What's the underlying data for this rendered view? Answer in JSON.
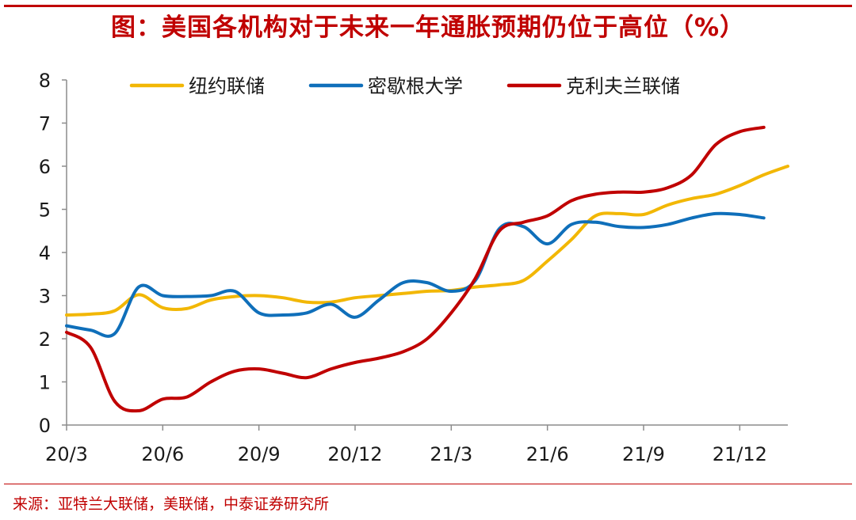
{
  "header": {
    "title": "图：美国各机构对于未来一年通胀预期仍位于高位（%）"
  },
  "footer": {
    "source": "来源：亚特兰大联储，美联储，中泰证券研究所"
  },
  "chart_data": {
    "type": "line",
    "title": "图：美国各机构对于未来一年通胀预期仍位于高位（%）",
    "xlabel": "",
    "ylabel": "",
    "ylim": [
      0,
      8
    ],
    "yticks": [
      "0",
      "1",
      "2",
      "3",
      "4",
      "5",
      "6",
      "7",
      "8"
    ],
    "xticks": [
      "20/3",
      "20/6",
      "20/9",
      "20/12",
      "21/3",
      "21/6",
      "21/9",
      "21/12"
    ],
    "grid": false,
    "legend_position": "top",
    "series": [
      {
        "name": "纽约联储",
        "color": "#f2b705",
        "points": [
          [
            0,
            2.55
          ],
          [
            0.5,
            2.57
          ],
          [
            1,
            2.65
          ],
          [
            1.5,
            3.02
          ],
          [
            2,
            2.72
          ],
          [
            2.5,
            2.7
          ],
          [
            3,
            2.9
          ],
          [
            3.5,
            2.98
          ],
          [
            4,
            3.0
          ],
          [
            4.5,
            2.95
          ],
          [
            5,
            2.85
          ],
          [
            5.5,
            2.85
          ],
          [
            6,
            2.95
          ],
          [
            6.5,
            3.0
          ],
          [
            7,
            3.05
          ],
          [
            7.5,
            3.1
          ],
          [
            8,
            3.12
          ],
          [
            8.5,
            3.2
          ],
          [
            9,
            3.25
          ],
          [
            9.5,
            3.35
          ],
          [
            10,
            3.8
          ],
          [
            10.5,
            4.3
          ],
          [
            11,
            4.85
          ],
          [
            11.5,
            4.9
          ],
          [
            12,
            4.88
          ],
          [
            12.5,
            5.1
          ],
          [
            13,
            5.25
          ],
          [
            13.5,
            5.35
          ],
          [
            14,
            5.55
          ],
          [
            14.5,
            5.8
          ],
          [
            15,
            6.0
          ]
        ]
      },
      {
        "name": "密歇根大学",
        "color": "#0f6fba",
        "points": [
          [
            0,
            2.3
          ],
          [
            0.5,
            2.2
          ],
          [
            1,
            2.12
          ],
          [
            1.5,
            3.2
          ],
          [
            2,
            3.0
          ],
          [
            2.5,
            2.98
          ],
          [
            3,
            3.0
          ],
          [
            3.5,
            3.1
          ],
          [
            4,
            2.6
          ],
          [
            4.5,
            2.55
          ],
          [
            5,
            2.6
          ],
          [
            5.5,
            2.8
          ],
          [
            6,
            2.5
          ],
          [
            6.5,
            2.9
          ],
          [
            7,
            3.3
          ],
          [
            7.5,
            3.3
          ],
          [
            8,
            3.1
          ],
          [
            8.5,
            3.35
          ],
          [
            9,
            4.55
          ],
          [
            9.5,
            4.6
          ],
          [
            10,
            4.2
          ],
          [
            10.5,
            4.65
          ],
          [
            11,
            4.7
          ],
          [
            11.5,
            4.6
          ],
          [
            12,
            4.58
          ],
          [
            12.5,
            4.65
          ],
          [
            13,
            4.8
          ],
          [
            13.5,
            4.9
          ],
          [
            14,
            4.88
          ],
          [
            14.5,
            4.8
          ]
        ]
      },
      {
        "name": "克利夫兰联储",
        "color": "#c00000",
        "points": [
          [
            0,
            2.15
          ],
          [
            0.5,
            1.8
          ],
          [
            1,
            0.55
          ],
          [
            1.5,
            0.33
          ],
          [
            2,
            0.6
          ],
          [
            2.5,
            0.65
          ],
          [
            3,
            1.0
          ],
          [
            3.5,
            1.25
          ],
          [
            4,
            1.3
          ],
          [
            4.5,
            1.2
          ],
          [
            5,
            1.1
          ],
          [
            5.5,
            1.3
          ],
          [
            6,
            1.45
          ],
          [
            6.5,
            1.55
          ],
          [
            7,
            1.7
          ],
          [
            7.5,
            2.0
          ],
          [
            8,
            2.6
          ],
          [
            8.5,
            3.4
          ],
          [
            9,
            4.5
          ],
          [
            9.5,
            4.7
          ],
          [
            10,
            4.85
          ],
          [
            10.5,
            5.2
          ],
          [
            11,
            5.35
          ],
          [
            11.5,
            5.4
          ],
          [
            12,
            5.4
          ],
          [
            12.5,
            5.5
          ],
          [
            13,
            5.8
          ],
          [
            13.5,
            6.5
          ],
          [
            14,
            6.8
          ],
          [
            14.5,
            6.9
          ]
        ]
      }
    ]
  }
}
